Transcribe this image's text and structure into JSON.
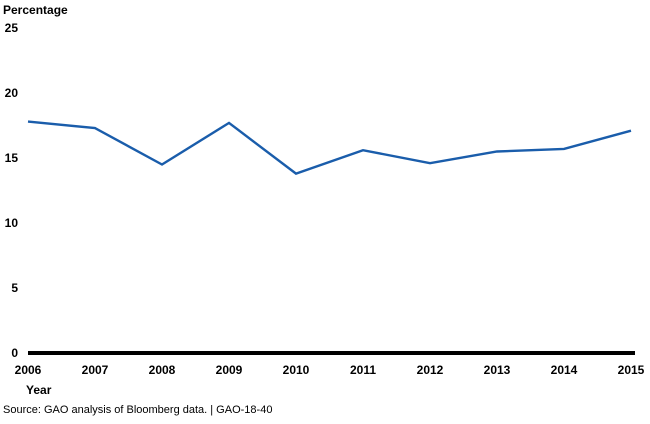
{
  "page": {
    "background": "#ffffff",
    "text_color": "#000000"
  },
  "chart": {
    "ylabel": "Percentage",
    "xlabel": "Year",
    "source": "Source: GAO analysis of Bloomberg data.  |  GAO-18-40"
  },
  "chart_data": {
    "type": "line",
    "title": "",
    "x": [
      2006,
      2007,
      2008,
      2009,
      2010,
      2011,
      2012,
      2013,
      2014,
      2015
    ],
    "series": [
      {
        "name": "Percentage",
        "color": "#1a5dab",
        "values": [
          17.8,
          17.3,
          14.5,
          17.7,
          13.8,
          15.6,
          14.6,
          15.5,
          15.7,
          17.1
        ]
      }
    ],
    "xlabel": "Year",
    "ylabel": "Percentage",
    "ylim": [
      0,
      25
    ],
    "yticks": [
      0,
      5,
      10,
      15,
      20,
      25
    ],
    "grid": false,
    "legend_position": "none",
    "axis_color": "#000000",
    "line_width": 2.4,
    "baseline_width": 4
  }
}
